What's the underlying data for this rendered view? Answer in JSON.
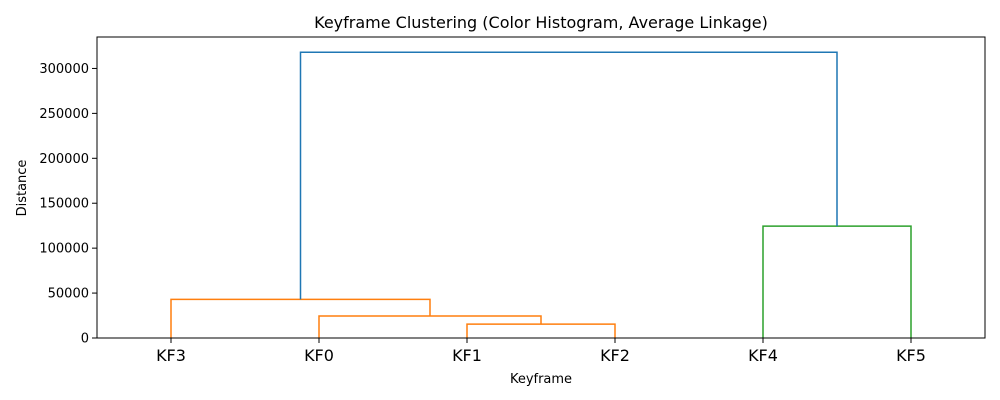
{
  "chart_data": {
    "type": "dendrogram",
    "title": "Keyframe Clustering (Color Histogram, Average Linkage)",
    "xlabel": "Keyframe",
    "ylabel": "Distance",
    "ylim": [
      0,
      335000
    ],
    "yticks": [
      0,
      50000,
      100000,
      150000,
      200000,
      250000,
      300000
    ],
    "ytick_labels": [
      "0",
      "50000",
      "100000",
      "150000",
      "200000",
      "250000",
      "300000"
    ],
    "leaves": [
      "KF3",
      "KF0",
      "KF1",
      "KF2",
      "KF4",
      "KF5"
    ],
    "colors": {
      "orange": "#ff7f0e",
      "green": "#2ca02c",
      "blue": "#1f77b4"
    },
    "links": [
      {
        "name": "merge-kf1-kf2",
        "xs": [
          2,
          2,
          3,
          3
        ],
        "ys": [
          0,
          15500,
          15500,
          0
        ],
        "color": "orange"
      },
      {
        "name": "merge-kf0-cluster",
        "xs": [
          1,
          1,
          2.5,
          2.5
        ],
        "ys": [
          0,
          24500,
          24500,
          15500
        ],
        "color": "orange"
      },
      {
        "name": "merge-kf3-cluster",
        "xs": [
          0,
          0,
          1.75,
          1.75
        ],
        "ys": [
          0,
          43000,
          43000,
          24500
        ],
        "color": "orange"
      },
      {
        "name": "merge-kf4-kf5",
        "xs": [
          4,
          4,
          5,
          5
        ],
        "ys": [
          0,
          124500,
          124500,
          0
        ],
        "color": "green"
      },
      {
        "name": "merge-root",
        "xs": [
          0.875,
          0.875,
          4.5,
          4.5
        ],
        "ys": [
          43000,
          318000,
          318000,
          124500
        ],
        "color": "blue"
      }
    ]
  }
}
